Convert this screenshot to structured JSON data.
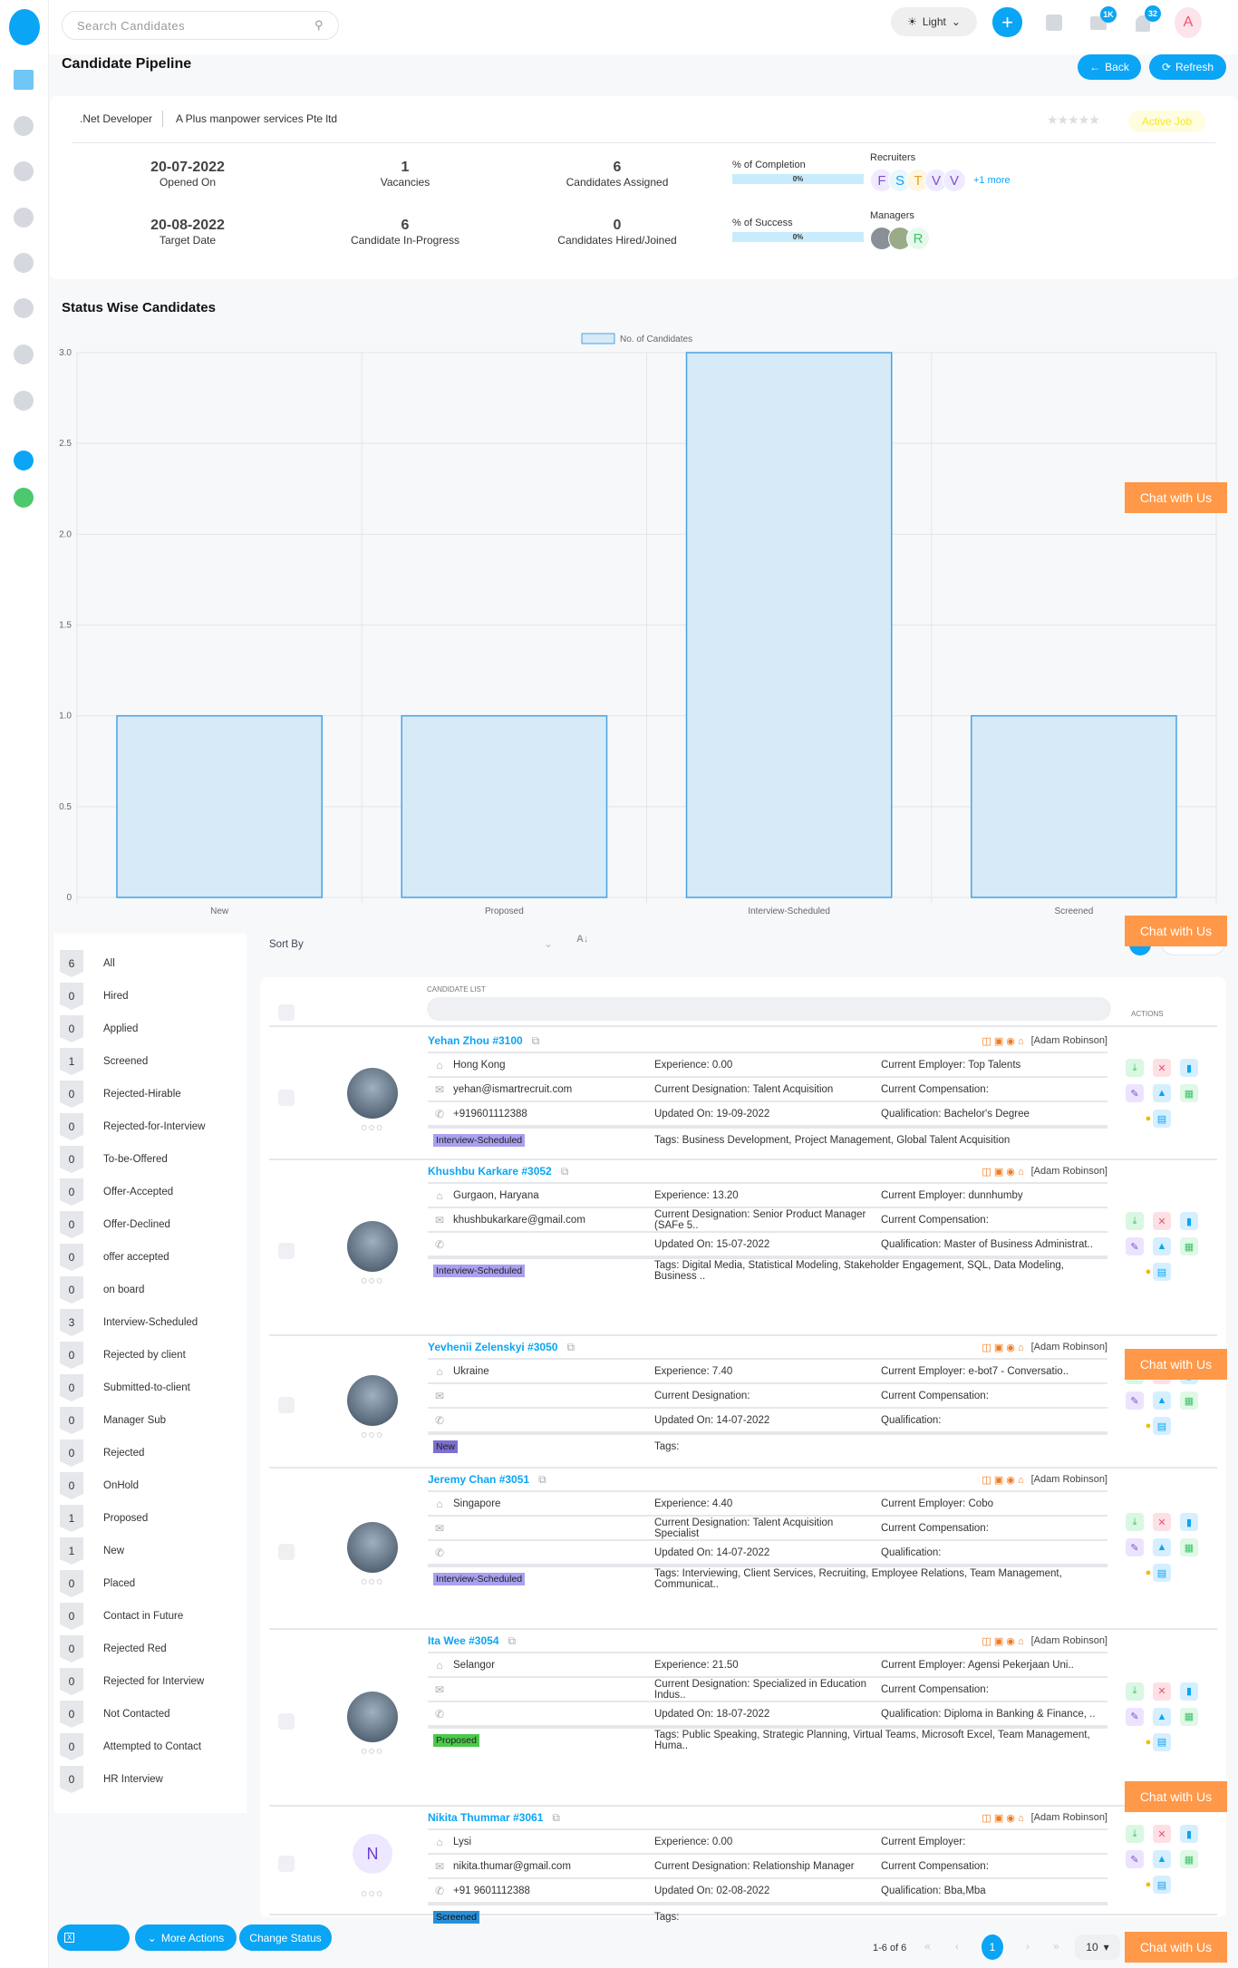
{
  "header": {
    "search_placeholder": "Search Candidates",
    "theme": "Light",
    "mail_badge": "1K",
    "bell_badge": "32",
    "avatar": "A"
  },
  "page": {
    "title": "Candidate Pipeline",
    "back": "Back",
    "refresh": "Refresh"
  },
  "job": {
    "title": ".Net Developer",
    "company": "A Plus manpower services Pte ltd",
    "status": "Active Job",
    "opened_on": "20-07-2022",
    "opened_label": "Opened On",
    "target_date": "20-08-2022",
    "target_label": "Target Date",
    "vacancies": "1",
    "vacancies_label": "Vacancies",
    "in_progress": "6",
    "in_progress_label": "Candidate In-Progress",
    "assigned": "6",
    "assigned_label": "Candidates Assigned",
    "hired": "0",
    "hired_label": "Candidates Hired/Joined",
    "completion_label": "% of Completion",
    "completion": "0%",
    "success_label": "% of Success",
    "success": "0%",
    "recruiters_label": "Recruiters",
    "recruiters": [
      "F",
      "S",
      "T",
      "V",
      "V"
    ],
    "recruiters_more": "+1 more",
    "managers_label": "Managers",
    "managers": [
      "R"
    ]
  },
  "colors": {
    "accent": "#0aa5f5",
    "chat": "#ff9848",
    "bar_fill": "#d6eaf8",
    "bar_stroke": "#4aa3df"
  },
  "chart_section_title": "Status Wise Candidates",
  "chart_data": {
    "type": "bar",
    "title": "",
    "legend": "No. of Candidates",
    "legend_position": "top",
    "categories": [
      "New",
      "Proposed",
      "Interview-Scheduled",
      "Screened"
    ],
    "values": [
      1,
      1,
      3,
      1
    ],
    "ylim": [
      0,
      3
    ],
    "yticks": [
      "0",
      "0.5",
      "1.0",
      "1.5",
      "2.0",
      "2.5",
      "3.0"
    ],
    "grid": true
  },
  "chat_label": "Chat with Us",
  "filters": [
    [
      "6",
      "All"
    ],
    [
      "0",
      "Hired"
    ],
    [
      "0",
      "Applied"
    ],
    [
      "1",
      "Screened"
    ],
    [
      "0",
      "Rejected-Hirable"
    ],
    [
      "0",
      "Rejected-for-Interview"
    ],
    [
      "0",
      "To-be-Offered"
    ],
    [
      "0",
      "Offer-Accepted"
    ],
    [
      "0",
      "Offer-Declined"
    ],
    [
      "0",
      "offer accepted"
    ],
    [
      "0",
      "on board"
    ],
    [
      "3",
      "Interview-Scheduled"
    ],
    [
      "0",
      "Rejected by client"
    ],
    [
      "0",
      "Submitted-to-client"
    ],
    [
      "0",
      "Manager Sub"
    ],
    [
      "0",
      "Rejected"
    ],
    [
      "0",
      "OnHold"
    ],
    [
      "1",
      "Proposed"
    ],
    [
      "1",
      "New"
    ],
    [
      "0",
      "Placed"
    ],
    [
      "0",
      "Contact in Future"
    ],
    [
      "0",
      "Rejected Red"
    ],
    [
      "0",
      "Rejected for Interview"
    ],
    [
      "0",
      "Not Contacted"
    ],
    [
      "0",
      "Attempted to Contact"
    ],
    [
      "0",
      "HR Interview"
    ]
  ],
  "list": {
    "sort_label": "Sort By",
    "header": "CANDIDATE LIST",
    "actions": "ACTIONS",
    "owner": "[Adam Robinson]"
  },
  "candidates": [
    {
      "name": "Yehan Zhou #3100",
      "loc": "Hong Kong",
      "email": "yehan@ismartrecruit.com",
      "phone": "+919601112388",
      "exp": "Experience: 0.00",
      "desig": "Current Designation: Talent Acquisition",
      "updated": "Updated On: 19-09-2022",
      "emp": "Current Employer: Top Talents",
      "comp": "Current Compensation:",
      "qual": "Qualification: Bachelor's Degree",
      "status": "Interview-Scheduled",
      "color": "#a8a0f0",
      "tags": "Tags: Business Development, Project Management, Global Talent Acquisition"
    },
    {
      "name": "Khushbu Karkare #3052",
      "loc": "Gurgaon, Haryana",
      "email": "khushbukarkare@gmail.com",
      "phone": "",
      "exp": "Experience: 13.20",
      "desig": "Current Designation: Senior Product Manager (SAFe 5..",
      "updated": "Updated On: 15-07-2022",
      "emp": "Current Employer: dunnhumby",
      "comp": "Current Compensation:",
      "qual": "Qualification: Master of Business Administrat..",
      "status": "Interview-Scheduled",
      "color": "#a8a0f0",
      "tags": "Tags: Digital Media, Statistical Modeling, Stakeholder Engagement, SQL, Data Modeling, Business .."
    },
    {
      "name": "Yevhenii Zelenskyi #3050",
      "loc": "Ukraine",
      "email": "",
      "phone": "",
      "exp": "Experience: 7.40",
      "desig": "Current Designation:",
      "updated": "Updated On: 14-07-2022",
      "emp": "Current Employer: e-bot7 - Conversatio..",
      "comp": "Current Compensation:",
      "qual": "Qualification:",
      "status": "New",
      "color": "#7b6fd0",
      "tags": "Tags:"
    },
    {
      "name": "Jeremy Chan #3051",
      "loc": "Singapore",
      "email": "",
      "phone": "",
      "exp": "Experience: 4.40",
      "desig": "Current Designation: Talent Acquisition Specialist",
      "updated": "Updated On: 14-07-2022",
      "emp": "Current Employer: Cobo",
      "comp": "Current Compensation:",
      "qual": "Qualification:",
      "status": "Interview-Scheduled",
      "color": "#a8a0f0",
      "tags": "Tags: Interviewing, Client Services, Recruiting, Employee Relations, Team Management, Communicat.."
    },
    {
      "name": "Ita Wee #3054",
      "loc": "Selangor",
      "email": "",
      "phone": "",
      "exp": "Experience: 21.50",
      "desig": "Current Designation: Specialized in Education Indus..",
      "updated": "Updated On: 18-07-2022",
      "emp": "Current Employer: Agensi Pekerjaan Uni..",
      "comp": "Current Compensation:",
      "qual": "Qualification: Diploma in Banking & Finance, ..",
      "status": "Proposed",
      "color": "#4cc94c",
      "tags": "Tags: Public Speaking, Strategic Planning, Virtual Teams, Microsoft Excel, Team Management, Huma.."
    },
    {
      "name": "Nikita Thummar #3061",
      "loc": "Lysi",
      "email": "nikita.thumar@gmail.com",
      "phone": "+91 9601112388",
      "exp": "Experience: 0.00",
      "desig": "Current Designation: Relationship Manager",
      "updated": "Updated On: 02-08-2022",
      "emp": "Current Employer:",
      "comp": "Current Compensation:",
      "qual": "Qualification: Bba,Mba",
      "status": "Screened",
      "color": "#2a8fd6",
      "tags": "Tags:",
      "initial": "N"
    }
  ],
  "bottom": {
    "more_actions": "More Actions",
    "change_status": "Change Status",
    "range": "1-6 of 6",
    "page": "1",
    "per_page": "10"
  }
}
